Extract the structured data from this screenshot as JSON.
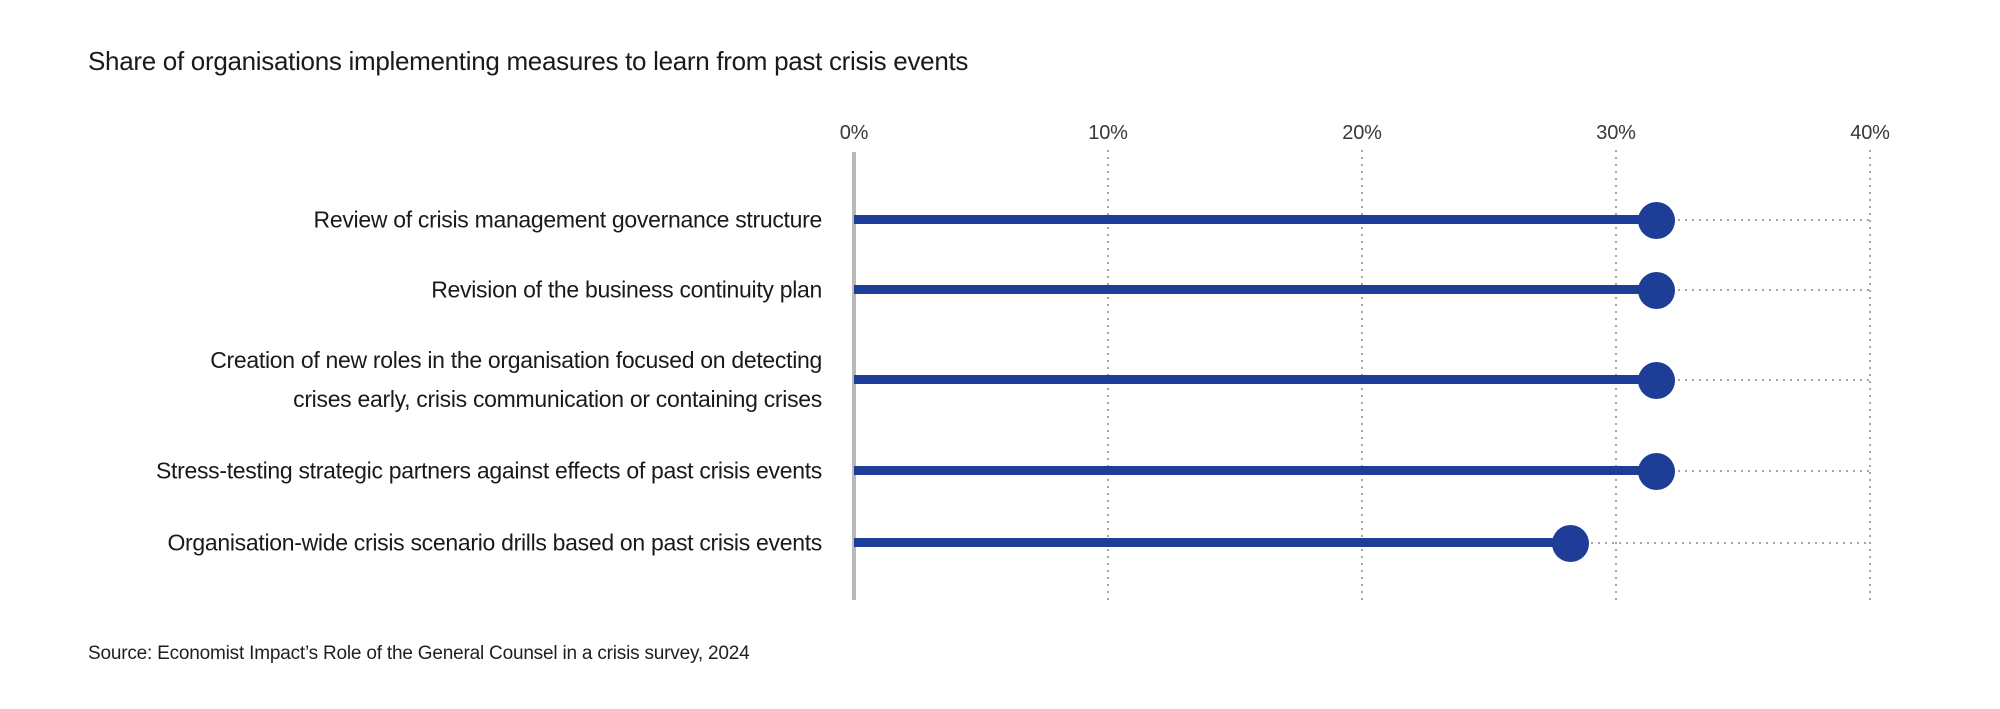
{
  "page": {
    "source": "Source: Economist Impact’s Role of the General Counsel in a crisis survey, 2024"
  },
  "colors": {
    "accent_blue": "#1e3d96",
    "text_dark": "#1a1a1a",
    "axis_gray": "#b9b9b9",
    "grid_gray": "#a6a6a6"
  },
  "chart_data": {
    "type": "bar",
    "variant": "horizontal-lollipop",
    "title": "Share of organisations implementing measures to learn from past crisis events",
    "categories": [
      "Review of crisis management governance structure",
      "Revision of the business continuity plan",
      "Creation of new roles in the organisation focused on detecting crises early, crisis communication or containing crises",
      "Stress-testing strategic partners against effects of past crisis events",
      "Organisation-wide crisis scenario drills based on past crisis events"
    ],
    "label_lines": [
      [
        "Review of crisis management governance structure"
      ],
      [
        "Revision of the business continuity plan"
      ],
      [
        "Creation of new roles in the organisation focused on detecting",
        "crises early, crisis communication or containing crises"
      ],
      [
        "Stress-testing strategic partners against effects of past crisis events"
      ],
      [
        "Organisation-wide crisis scenario drills based on past crisis events"
      ]
    ],
    "values": [
      31.6,
      31.6,
      31.6,
      31.6,
      28.2
    ],
    "unit": "%",
    "xlabel": "",
    "ylabel": "",
    "xlim": [
      0,
      40
    ],
    "x_ticks": [
      0,
      10,
      20,
      30,
      40
    ],
    "x_tick_labels": [
      "0%",
      "10%",
      "20%",
      "30%",
      "40%"
    ],
    "grid": "vertical-dotted",
    "legend": "none"
  }
}
